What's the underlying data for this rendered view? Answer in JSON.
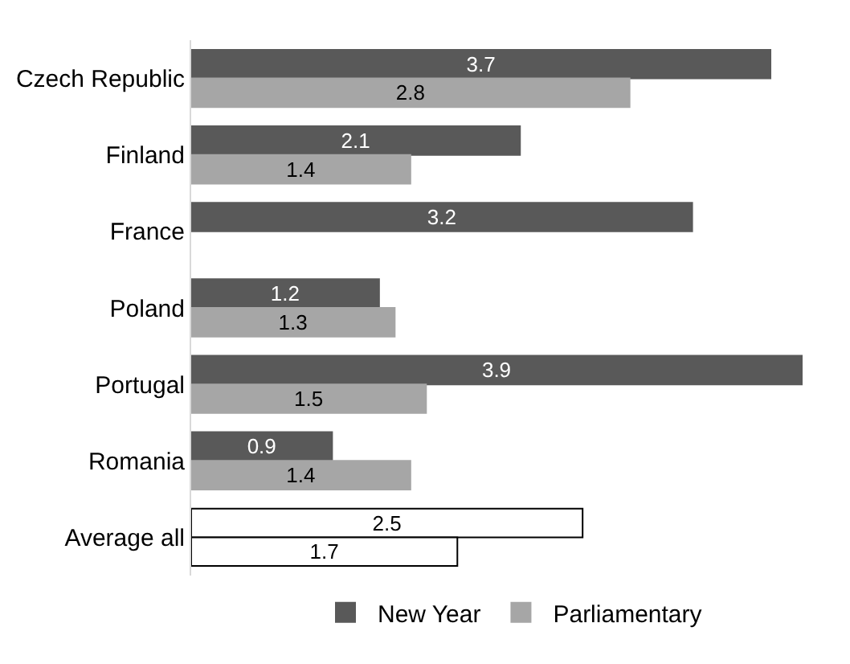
{
  "chart_data": {
    "type": "bar",
    "orientation": "horizontal",
    "categories": [
      "Czech Republic",
      "Finland",
      "France",
      "Poland",
      "Portugal",
      "Romania",
      "Average all"
    ],
    "series": [
      {
        "name": "New Year",
        "color": "#595959",
        "colors": [
          null,
          null,
          null,
          null,
          null,
          null,
          "#ffffff"
        ],
        "values": [
          3.7,
          2.1,
          3.2,
          1.2,
          3.9,
          0.9,
          2.5
        ]
      },
      {
        "name": "Parliamentary",
        "color": "#a6a6a6",
        "colors": [
          null,
          null,
          null,
          null,
          null,
          null,
          "#ffffff"
        ],
        "values": [
          2.8,
          1.4,
          null,
          1.3,
          1.5,
          1.4,
          1.7
        ]
      }
    ],
    "data_labels": true,
    "legend": "bottom"
  }
}
